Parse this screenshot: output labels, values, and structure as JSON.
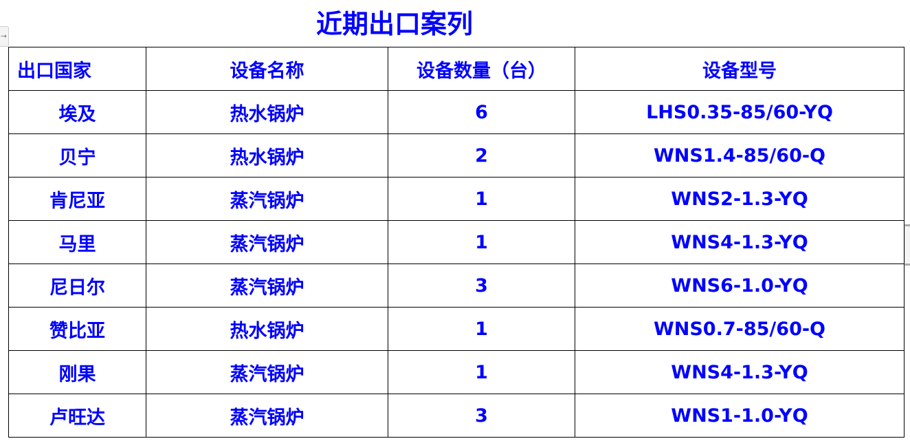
{
  "title": "近期出口案列",
  "columns": [
    "出口国家",
    "设备名称",
    "设备数量（台）",
    "设备型号"
  ],
  "rows": [
    [
      "埃及",
      "热水锅炉",
      "6",
      "LHS0.35-85/60-YQ"
    ],
    [
      "贝宁",
      "热水锅炉",
      "2",
      "WNS1.4-85/60-Q"
    ],
    [
      "肯尼亚",
      "蒸汽锅炉",
      "1",
      "WNS2-1.3-YQ"
    ],
    [
      "马里",
      "蒸汽锅炉",
      "1",
      "WNS4-1.3-YQ"
    ],
    [
      "尼日尔",
      "蒸汽锅炉",
      "3",
      "WNS6-1.0-YQ"
    ],
    [
      "赞比亚",
      "热水锅炉",
      "1",
      "WNS0.7-85/60-Q"
    ],
    [
      "刚果",
      "蒸汽锅炉",
      "1",
      "WNS4-1.3-YQ"
    ],
    [
      "卢旺达",
      "蒸汽锅炉",
      "3",
      "WNS1-1.0-YQ"
    ]
  ],
  "colors": {
    "text": "#0000ff",
    "border": "#000000"
  }
}
